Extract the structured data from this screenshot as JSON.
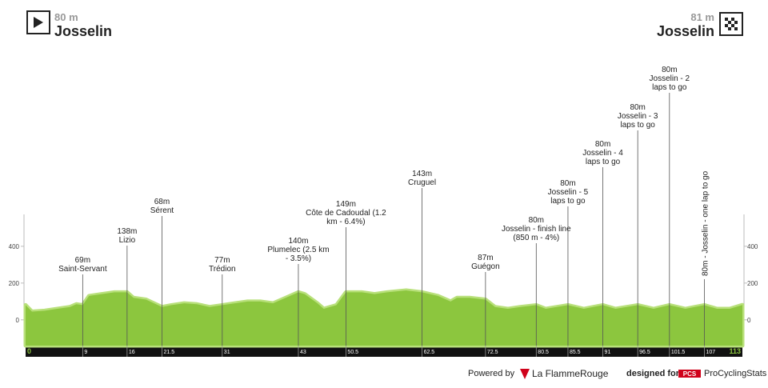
{
  "chart_data": {
    "type": "area",
    "start": {
      "altitude": "80 m",
      "name": "Josselin"
    },
    "finish": {
      "altitude": "81 m",
      "name": "Josselin"
    },
    "x": [
      0,
      1,
      3,
      5,
      7,
      8,
      9,
      10,
      12,
      14,
      16,
      17,
      19,
      21.5,
      23,
      25,
      27,
      29,
      31,
      33,
      35,
      37,
      39,
      41,
      43,
      44,
      46,
      47,
      49,
      50.5,
      53,
      55,
      57,
      60,
      62.5,
      65,
      67,
      68,
      70,
      72.5,
      74,
      76,
      78,
      80.5,
      82,
      85.5,
      88,
      91,
      93,
      96.5,
      99,
      101.5,
      104,
      107,
      109,
      111,
      113
    ],
    "values": [
      80,
      45,
      50,
      60,
      70,
      85,
      80,
      130,
      140,
      150,
      150,
      120,
      110,
      70,
      80,
      90,
      85,
      70,
      80,
      90,
      100,
      100,
      90,
      120,
      150,
      140,
      90,
      60,
      80,
      150,
      150,
      140,
      150,
      160,
      150,
      130,
      100,
      120,
      120,
      110,
      70,
      60,
      70,
      80,
      60,
      80,
      60,
      80,
      60,
      80,
      60,
      80,
      60,
      80,
      60,
      60,
      81
    ],
    "color": "#8cc63e",
    "xlim": [
      0,
      113
    ],
    "ylim": [
      -140,
      1400
    ],
    "yticks": [
      0,
      200,
      400
    ],
    "markers": [
      {
        "km": 9,
        "label_lines": [
          "69m",
          "Saint-Servant"
        ]
      },
      {
        "km": 16,
        "label_lines": [
          "138m",
          "Lizio"
        ]
      },
      {
        "km": 21.5,
        "label_lines": [
          "68m",
          "Sérent"
        ]
      },
      {
        "km": 31,
        "label_lines": [
          "77m",
          "Trédion"
        ]
      },
      {
        "km": 43,
        "label_lines": [
          "140m",
          "Plumelec (2.5 km",
          "- 3.5%)"
        ]
      },
      {
        "km": 50.5,
        "label_lines": [
          "149m",
          "Côte de Cadoudal (1.2",
          "km - 6.4%)"
        ]
      },
      {
        "km": 62.5,
        "label_lines": [
          "143m",
          "Cruguel"
        ]
      },
      {
        "km": 72.5,
        "label_lines": [
          "87m",
          "Guégon"
        ]
      },
      {
        "km": 80.5,
        "label_lines": [
          "80m",
          "Josselin - finish line",
          "(850 m - 4%)"
        ]
      },
      {
        "km": 85.5,
        "label_lines": [
          "80m",
          "Josselin - 5",
          "laps to go"
        ]
      },
      {
        "km": 91,
        "label_lines": [
          "80m",
          "Josselin - 4",
          "laps to go"
        ]
      },
      {
        "km": 96.5,
        "label_lines": [
          "80m",
          "Josselin - 3",
          "laps to go"
        ]
      },
      {
        "km": 101.5,
        "label_lines": [
          "80m",
          "Josselin - 2",
          "laps to go"
        ]
      },
      {
        "km": 107,
        "label_lines": [
          "80m - Josselin - one lap to go"
        ],
        "rotated": true
      }
    ]
  },
  "footer": {
    "powered_by": "Powered by",
    "brand": "La FlammeRouge",
    "designed_for": "designed for",
    "pcs_logo": "PCS",
    "pcs_name": "ProCyclingStats"
  }
}
